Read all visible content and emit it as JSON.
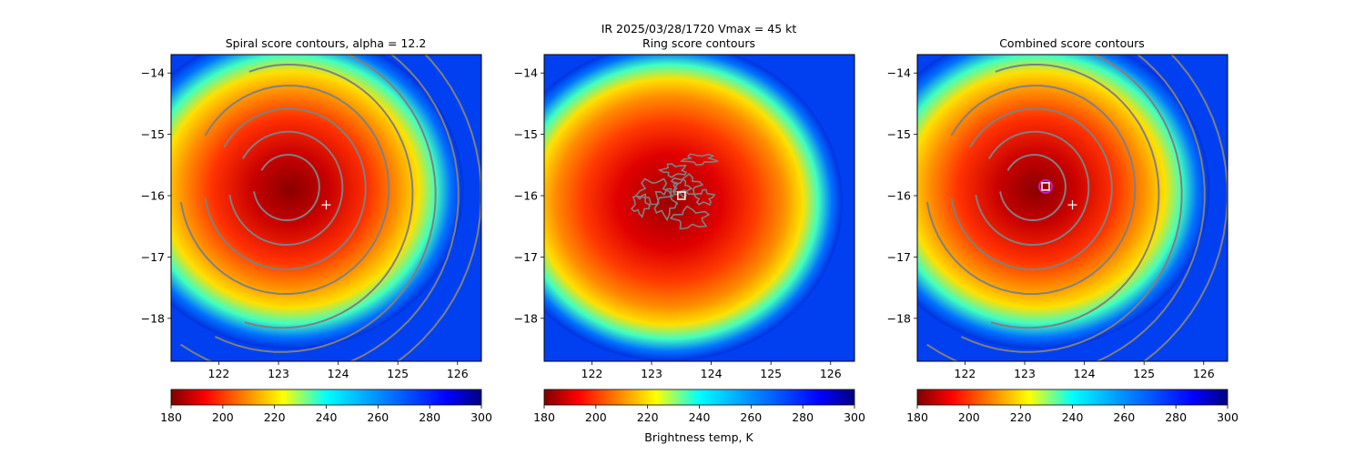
{
  "figure": {
    "suptitle": "IR  2025/03/28/1720    Vmax = 45 kt",
    "colorbar_label": "Brightness temp, K"
  },
  "chart_data": [
    {
      "type": "heatmap",
      "title": "Spiral score contours, alpha = 12.2",
      "xlim": [
        121.2,
        126.4
      ],
      "ylim": [
        -18.7,
        -13.7
      ],
      "xticks": [
        122,
        123,
        124,
        125,
        126
      ],
      "yticks": [
        -14,
        -15,
        -16,
        -17,
        -18
      ],
      "colormap": "jet",
      "cbar_range": [
        180,
        300
      ],
      "cbar_ticks": [
        180,
        200,
        220,
        240,
        260,
        280,
        300
      ],
      "storm_core": {
        "lon": 123.2,
        "lat": -15.9
      },
      "contours": "spiral",
      "spiral_center": {
        "lon": 123.15,
        "lat": -15.85
      },
      "plus_marker": {
        "lon": 123.8,
        "lat": -16.15
      }
    },
    {
      "type": "heatmap",
      "title": "Ring score contours",
      "xlim": [
        121.2,
        126.4
      ],
      "ylim": [
        -18.7,
        -13.7
      ],
      "xticks": [
        122,
        123,
        124,
        125,
        126
      ],
      "yticks": [
        -14,
        -15,
        -16,
        -17,
        -18
      ],
      "colormap": "jet",
      "cbar_range": [
        180,
        300
      ],
      "cbar_ticks": [
        180,
        200,
        220,
        240,
        260,
        280,
        300
      ],
      "storm_core": {
        "lon": 123.3,
        "lat": -16.1
      },
      "contours": "ring",
      "square_marker": {
        "lon": 123.5,
        "lat": -16.0
      }
    },
    {
      "type": "heatmap",
      "title": "Combined score contours",
      "xlim": [
        121.2,
        126.4
      ],
      "ylim": [
        -18.7,
        -13.7
      ],
      "xticks": [
        122,
        123,
        124,
        125,
        126
      ],
      "yticks": [
        -14,
        -15,
        -16,
        -17,
        -18
      ],
      "colormap": "jet",
      "cbar_range": [
        180,
        300
      ],
      "cbar_ticks": [
        180,
        200,
        220,
        240,
        260,
        280,
        300
      ],
      "storm_core": {
        "lon": 123.2,
        "lat": -15.9
      },
      "contours": "spiral",
      "spiral_center": {
        "lon": 123.15,
        "lat": -15.85
      },
      "plus_marker": {
        "lon": 123.8,
        "lat": -16.15
      },
      "square_marker": {
        "lon": 123.35,
        "lat": -15.85
      },
      "circle_marker": {
        "lon": 123.35,
        "lat": -15.85
      }
    }
  ]
}
